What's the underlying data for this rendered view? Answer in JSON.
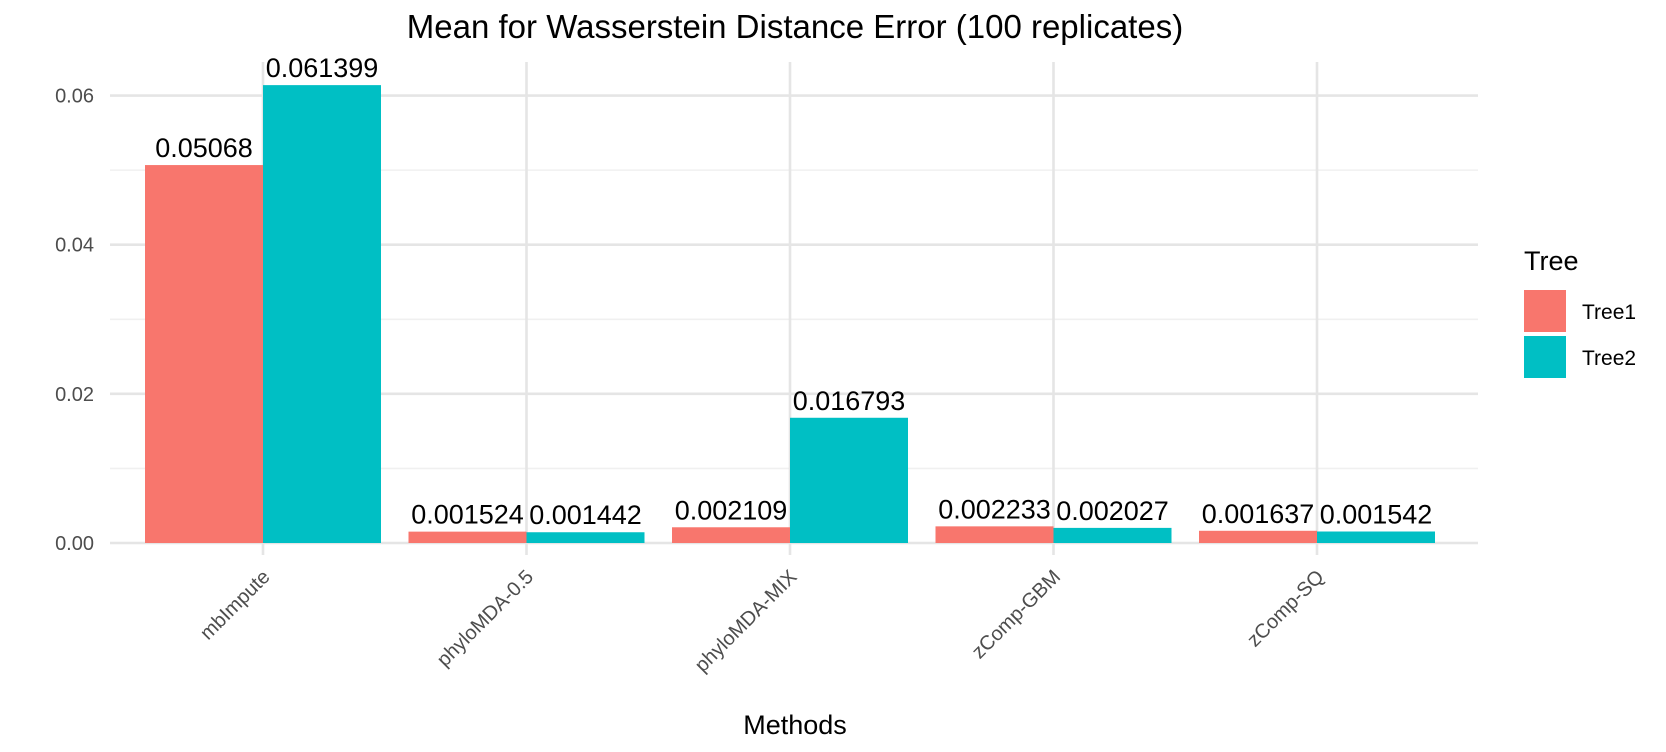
{
  "chart_data": {
    "type": "bar",
    "title": "Mean for Wasserstein Distance Error (100 replicates)",
    "xlabel": "Methods",
    "ylabel": "",
    "categories": [
      "mbImpute",
      "phyloMDA-0.5",
      "phyloMDA-MIX",
      "zComp-GBM",
      "zComp-SQ"
    ],
    "series": [
      {
        "name": "Tree1",
        "color": "#F8766D",
        "values": [
          0.05068,
          0.001524,
          0.002109,
          0.002233,
          0.001637
        ],
        "labels": [
          "0.05068",
          "0.001524",
          "0.002109",
          "0.002233",
          "0.001637"
        ]
      },
      {
        "name": "Tree2",
        "color": "#00BFC4",
        "values": [
          0.061399,
          0.001442,
          0.016793,
          0.002027,
          0.001542
        ],
        "labels": [
          "0.061399",
          "0.001442",
          "0.016793",
          "0.002027",
          "0.001542"
        ]
      }
    ],
    "ylim": [
      0,
      0.0645
    ],
    "yticks": [
      0,
      0.02,
      0.04,
      0.06
    ],
    "ytick_labels": [
      "0.00",
      "0.02",
      "0.04",
      "0.06"
    ],
    "grid": true,
    "legend": {
      "title": "Tree",
      "position": "right"
    }
  }
}
